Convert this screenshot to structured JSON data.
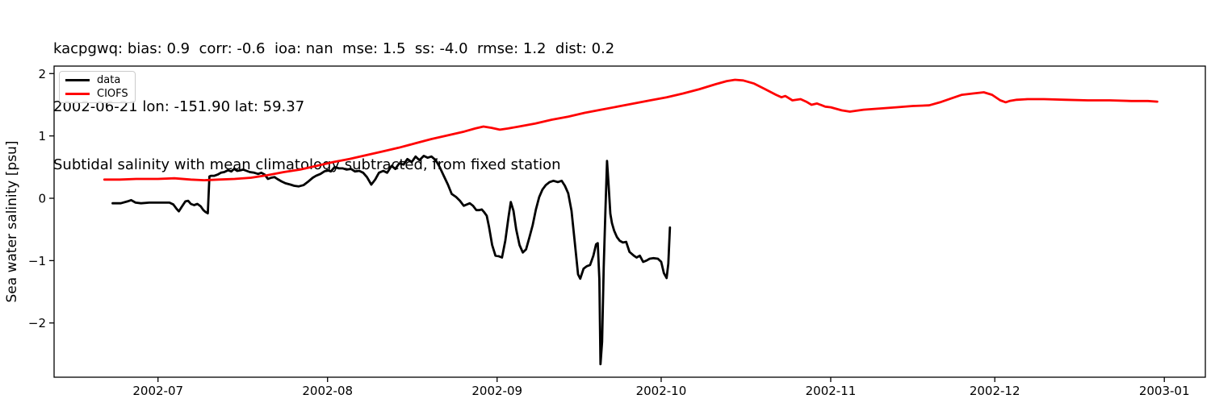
{
  "title": {
    "line1": "kacpgwq: bias: 0.9  corr: -0.6  ioa: nan  mse: 1.5  ss: -4.0  rmse: 1.2  dist: 0.2",
    "line2": "2002-06-21 lon: -151.90 lat: 59.37",
    "line3": "Subtidal salinity with mean climatology subtracted, from fixed station"
  },
  "colors": {
    "data_line": "#000000",
    "model_line": "#ff0000",
    "axis": "#000000",
    "legend_border": "#cccccc",
    "background": "#ffffff"
  },
  "chart_data": {
    "type": "line",
    "title": "Subtidal salinity with mean climatology subtracted, from fixed station",
    "xlabel": "",
    "ylabel": "Sea water salinity [psu]",
    "x_unit_days_since": "2002-06-21",
    "xlim": [
      -9.0,
      201.5
    ],
    "ylim": [
      -2.87,
      2.12
    ],
    "grid": false,
    "legend_position": "upper left",
    "xticks": [
      {
        "day": 10,
        "label": "2002-07"
      },
      {
        "day": 41,
        "label": "2002-08"
      },
      {
        "day": 72,
        "label": "2002-09"
      },
      {
        "day": 102,
        "label": "2002-10"
      },
      {
        "day": 133,
        "label": "2002-11"
      },
      {
        "day": 163,
        "label": "2002-12"
      },
      {
        "day": 194,
        "label": "2003-01"
      }
    ],
    "yticks": [
      {
        "value": 2,
        "label": "2"
      },
      {
        "value": 1,
        "label": "1"
      },
      {
        "value": 0,
        "label": "0"
      },
      {
        "value": -1,
        "label": "−1"
      },
      {
        "value": -2,
        "label": "−2"
      }
    ],
    "series": [
      {
        "name": "data",
        "color": "#000000",
        "points": [
          [
            1.7,
            -0.08
          ],
          [
            3.2,
            -0.08
          ],
          [
            4.4,
            -0.05
          ],
          [
            5.1,
            -0.03
          ],
          [
            5.9,
            -0.07
          ],
          [
            6.9,
            -0.08
          ],
          [
            8.4,
            -0.07
          ],
          [
            10.3,
            -0.07
          ],
          [
            12.1,
            -0.07
          ],
          [
            12.8,
            -0.1
          ],
          [
            13.4,
            -0.17
          ],
          [
            13.8,
            -0.21
          ],
          [
            14.4,
            -0.13
          ],
          [
            15.0,
            -0.05
          ],
          [
            15.5,
            -0.04
          ],
          [
            16.0,
            -0.09
          ],
          [
            16.6,
            -0.11
          ],
          [
            17.2,
            -0.09
          ],
          [
            17.8,
            -0.13
          ],
          [
            18.3,
            -0.19
          ],
          [
            18.7,
            -0.22
          ],
          [
            19.1,
            -0.24
          ],
          [
            19.4,
            0.35
          ],
          [
            19.7,
            0.36
          ],
          [
            20.3,
            0.36
          ],
          [
            20.9,
            0.38
          ],
          [
            21.5,
            0.41
          ],
          [
            22.1,
            0.42
          ],
          [
            22.8,
            0.45
          ],
          [
            23.4,
            0.43
          ],
          [
            23.9,
            0.47
          ],
          [
            24.5,
            0.44
          ],
          [
            25.1,
            0.45
          ],
          [
            25.6,
            0.46
          ],
          [
            26.2,
            0.44
          ],
          [
            26.8,
            0.42
          ],
          [
            27.6,
            0.41
          ],
          [
            28.3,
            0.39
          ],
          [
            28.9,
            0.41
          ],
          [
            29.5,
            0.38
          ],
          [
            30.1,
            0.31
          ],
          [
            30.7,
            0.33
          ],
          [
            31.3,
            0.34
          ],
          [
            31.8,
            0.31
          ],
          [
            32.6,
            0.27
          ],
          [
            33.3,
            0.24
          ],
          [
            34.2,
            0.22
          ],
          [
            34.9,
            0.2
          ],
          [
            35.7,
            0.19
          ],
          [
            36.6,
            0.21
          ],
          [
            37.5,
            0.27
          ],
          [
            38.3,
            0.33
          ],
          [
            38.9,
            0.36
          ],
          [
            39.7,
            0.39
          ],
          [
            40.4,
            0.43
          ],
          [
            41.0,
            0.45
          ],
          [
            41.6,
            0.43
          ],
          [
            42.3,
            0.5
          ],
          [
            43.1,
            0.48
          ],
          [
            43.8,
            0.48
          ],
          [
            44.5,
            0.46
          ],
          [
            45.3,
            0.47
          ],
          [
            46.0,
            0.43
          ],
          [
            46.8,
            0.44
          ],
          [
            47.5,
            0.41
          ],
          [
            48.2,
            0.34
          ],
          [
            49.0,
            0.22
          ],
          [
            49.7,
            0.3
          ],
          [
            50.4,
            0.41
          ],
          [
            51.2,
            0.44
          ],
          [
            51.9,
            0.41
          ],
          [
            52.7,
            0.52
          ],
          [
            53.4,
            0.47
          ],
          [
            54.1,
            0.56
          ],
          [
            54.9,
            0.54
          ],
          [
            55.6,
            0.63
          ],
          [
            56.4,
            0.58
          ],
          [
            57.1,
            0.67
          ],
          [
            57.8,
            0.61
          ],
          [
            58.6,
            0.68
          ],
          [
            59.3,
            0.65
          ],
          [
            60.0,
            0.67
          ],
          [
            60.8,
            0.61
          ],
          [
            61.5,
            0.5
          ],
          [
            62.3,
            0.35
          ],
          [
            63.0,
            0.22
          ],
          [
            63.7,
            0.07
          ],
          [
            64.5,
            0.02
          ],
          [
            65.2,
            -0.04
          ],
          [
            65.9,
            -0.12
          ],
          [
            67.0,
            -0.08
          ],
          [
            67.6,
            -0.12
          ],
          [
            68.2,
            -0.19
          ],
          [
            68.7,
            -0.19
          ],
          [
            69.2,
            -0.18
          ],
          [
            69.6,
            -0.22
          ],
          [
            70.1,
            -0.28
          ],
          [
            70.5,
            -0.45
          ],
          [
            71.1,
            -0.75
          ],
          [
            71.7,
            -0.92
          ],
          [
            72.3,
            -0.93
          ],
          [
            72.9,
            -0.95
          ],
          [
            73.5,
            -0.68
          ],
          [
            74.1,
            -0.3
          ],
          [
            74.5,
            -0.06
          ],
          [
            75.0,
            -0.2
          ],
          [
            75.5,
            -0.5
          ],
          [
            76.1,
            -0.75
          ],
          [
            76.7,
            -0.87
          ],
          [
            77.3,
            -0.82
          ],
          [
            77.9,
            -0.63
          ],
          [
            78.5,
            -0.43
          ],
          [
            79.1,
            -0.18
          ],
          [
            79.7,
            0.02
          ],
          [
            80.3,
            0.14
          ],
          [
            80.9,
            0.21
          ],
          [
            81.6,
            0.26
          ],
          [
            82.3,
            0.28
          ],
          [
            83.1,
            0.26
          ],
          [
            83.8,
            0.28
          ],
          [
            84.4,
            0.2
          ],
          [
            85.0,
            0.08
          ],
          [
            85.6,
            -0.2
          ],
          [
            86.2,
            -0.7
          ],
          [
            86.8,
            -1.22
          ],
          [
            87.2,
            -1.29
          ],
          [
            87.8,
            -1.13
          ],
          [
            88.4,
            -1.09
          ],
          [
            89.0,
            -1.07
          ],
          [
            89.6,
            -0.92
          ],
          [
            90.1,
            -0.74
          ],
          [
            90.4,
            -0.72
          ],
          [
            90.7,
            -1.3
          ],
          [
            90.9,
            -2.66
          ],
          [
            91.2,
            -2.3
          ],
          [
            91.5,
            -1.1
          ],
          [
            91.8,
            -0.2
          ],
          [
            92.1,
            0.6
          ],
          [
            92.4,
            0.2
          ],
          [
            92.7,
            -0.25
          ],
          [
            93.0,
            -0.4
          ],
          [
            93.4,
            -0.52
          ],
          [
            93.9,
            -0.62
          ],
          [
            94.4,
            -0.68
          ],
          [
            95.0,
            -0.71
          ],
          [
            95.6,
            -0.7
          ],
          [
            96.2,
            -0.86
          ],
          [
            97.0,
            -0.92
          ],
          [
            97.5,
            -0.95
          ],
          [
            98.1,
            -0.92
          ],
          [
            98.7,
            -1.02
          ],
          [
            99.3,
            -1.0
          ],
          [
            99.9,
            -0.97
          ],
          [
            100.6,
            -0.96
          ],
          [
            101.4,
            -0.97
          ],
          [
            102.0,
            -1.02
          ],
          [
            102.5,
            -1.2
          ],
          [
            103.0,
            -1.28
          ],
          [
            103.3,
            -1.05
          ],
          [
            103.6,
            -0.47
          ]
        ]
      },
      {
        "name": "CIOFS",
        "color": "#ff0000",
        "points": [
          [
            0.2,
            0.3
          ],
          [
            3,
            0.3
          ],
          [
            6,
            0.31
          ],
          [
            10,
            0.31
          ],
          [
            13,
            0.32
          ],
          [
            16,
            0.3
          ],
          [
            18.5,
            0.29
          ],
          [
            21,
            0.3
          ],
          [
            24,
            0.31
          ],
          [
            27,
            0.33
          ],
          [
            30,
            0.37
          ],
          [
            33,
            0.42
          ],
          [
            36,
            0.46
          ],
          [
            39,
            0.52
          ],
          [
            42,
            0.58
          ],
          [
            45,
            0.63
          ],
          [
            48,
            0.69
          ],
          [
            51,
            0.75
          ],
          [
            54,
            0.81
          ],
          [
            57,
            0.88
          ],
          [
            60,
            0.95
          ],
          [
            63,
            1.01
          ],
          [
            66,
            1.07
          ],
          [
            68,
            1.12
          ],
          [
            69.5,
            1.15
          ],
          [
            71,
            1.13
          ],
          [
            72.5,
            1.1
          ],
          [
            74,
            1.12
          ],
          [
            76,
            1.15
          ],
          [
            79,
            1.2
          ],
          [
            82,
            1.26
          ],
          [
            85,
            1.31
          ],
          [
            88,
            1.37
          ],
          [
            91,
            1.42
          ],
          [
            94,
            1.47
          ],
          [
            97,
            1.52
          ],
          [
            100,
            1.57
          ],
          [
            103,
            1.62
          ],
          [
            106,
            1.68
          ],
          [
            109,
            1.75
          ],
          [
            112,
            1.83
          ],
          [
            114,
            1.88
          ],
          [
            115.5,
            1.9
          ],
          [
            117,
            1.89
          ],
          [
            119,
            1.84
          ],
          [
            121,
            1.75
          ],
          [
            123,
            1.66
          ],
          [
            124,
            1.62
          ],
          [
            124.7,
            1.64
          ],
          [
            126,
            1.57
          ],
          [
            127.5,
            1.59
          ],
          [
            128.5,
            1.55
          ],
          [
            129.5,
            1.5
          ],
          [
            130.5,
            1.52
          ],
          [
            132,
            1.47
          ],
          [
            133,
            1.46
          ],
          [
            135,
            1.41
          ],
          [
            136.5,
            1.39
          ],
          [
            139,
            1.42
          ],
          [
            142,
            1.44
          ],
          [
            145,
            1.46
          ],
          [
            148,
            1.48
          ],
          [
            151,
            1.49
          ],
          [
            153,
            1.54
          ],
          [
            155,
            1.6
          ],
          [
            157,
            1.66
          ],
          [
            159,
            1.68
          ],
          [
            161,
            1.7
          ],
          [
            162.5,
            1.66
          ],
          [
            164,
            1.57
          ],
          [
            165,
            1.54
          ],
          [
            165.7,
            1.56
          ],
          [
            167,
            1.58
          ],
          [
            169,
            1.59
          ],
          [
            172,
            1.59
          ],
          [
            176,
            1.58
          ],
          [
            180,
            1.57
          ],
          [
            184,
            1.57
          ],
          [
            188,
            1.56
          ],
          [
            191,
            1.56
          ],
          [
            192.7,
            1.55
          ]
        ]
      }
    ]
  }
}
